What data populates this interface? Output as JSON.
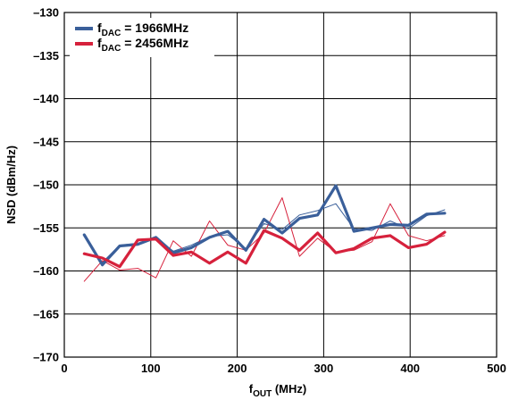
{
  "chart_data": {
    "type": "line",
    "title": "",
    "xlabel": {
      "main": "f",
      "sub": "OUT",
      "rest": " (MHz)"
    },
    "ylabel": "NSD (dBm/Hz)",
    "xlim": [
      0,
      500
    ],
    "ylim": [
      -170,
      -130
    ],
    "x_ticks": [
      0,
      100,
      200,
      300,
      400,
      500
    ],
    "y_ticks": [
      -130,
      -135,
      -140,
      -145,
      -150,
      -155,
      -160,
      -165,
      -170
    ],
    "x_tick_labels": [
      "0",
      "100",
      "200",
      "300",
      "400",
      "500"
    ],
    "y_tick_labels": [
      "–130",
      "–135",
      "–140",
      "–145",
      "–150",
      "–155",
      "–160",
      "–165",
      "–170"
    ],
    "grid": true,
    "legend_position": "top-left",
    "x": [
      23,
      44,
      64,
      85,
      106,
      126,
      147,
      168,
      189,
      210,
      231,
      252,
      272,
      293,
      314,
      335,
      356,
      377,
      398,
      419,
      440
    ],
    "series": [
      {
        "legend_main": "f",
        "legend_sub": "DAC",
        "legend_rest": " = 1966MHz",
        "color": "#3a5f9a",
        "width": 3.2,
        "in_legend": true,
        "values": [
          -155.8,
          -159.3,
          -157.1,
          -156.9,
          -156.1,
          -157.9,
          -157.3,
          -156.1,
          -155.4,
          -157.6,
          -154.0,
          -155.6,
          -153.9,
          -153.5,
          -150.1,
          -155.4,
          -155.0,
          -154.6,
          -154.7,
          -153.4,
          -153.3
        ]
      },
      {
        "legend_main": "f",
        "legend_sub": "DAC",
        "legend_rest": " = 1966MHz (thin)",
        "color": "#3a5f9a",
        "width": 1.0,
        "in_legend": false,
        "values": [
          -156.0,
          -159.0,
          -157.0,
          -156.8,
          -156.2,
          -157.7,
          -157.0,
          -156.0,
          -155.8,
          -157.4,
          -154.5,
          -155.2,
          -153.5,
          -153.0,
          -152.2,
          -155.1,
          -155.3,
          -154.2,
          -155.1,
          -153.6,
          -152.9
        ]
      },
      {
        "legend_main": "f",
        "legend_sub": "DAC",
        "legend_rest": " = 2456MHz",
        "color": "#d6213c",
        "width": 3.2,
        "in_legend": true,
        "values": [
          -158.0,
          -158.5,
          -159.5,
          -156.4,
          -156.3,
          -158.2,
          -157.8,
          -159.1,
          -157.8,
          -159.1,
          -155.3,
          -156.2,
          -157.6,
          -155.6,
          -157.9,
          -157.4,
          -156.2,
          -155.9,
          -157.3,
          -156.9,
          -155.5
        ]
      },
      {
        "legend_main": "f",
        "legend_sub": "DAC",
        "legend_rest": " = 2456MHz (thin)",
        "color": "#d6213c",
        "width": 1.0,
        "in_legend": false,
        "values": [
          -161.2,
          -158.8,
          -159.9,
          -159.7,
          -160.8,
          -156.5,
          -158.3,
          -154.2,
          -157.0,
          -157.6,
          -155.6,
          -151.5,
          -158.3,
          -156.2,
          -157.8,
          -157.6,
          -156.6,
          -152.2,
          -155.9,
          -156.5,
          -155.9
        ]
      }
    ]
  }
}
